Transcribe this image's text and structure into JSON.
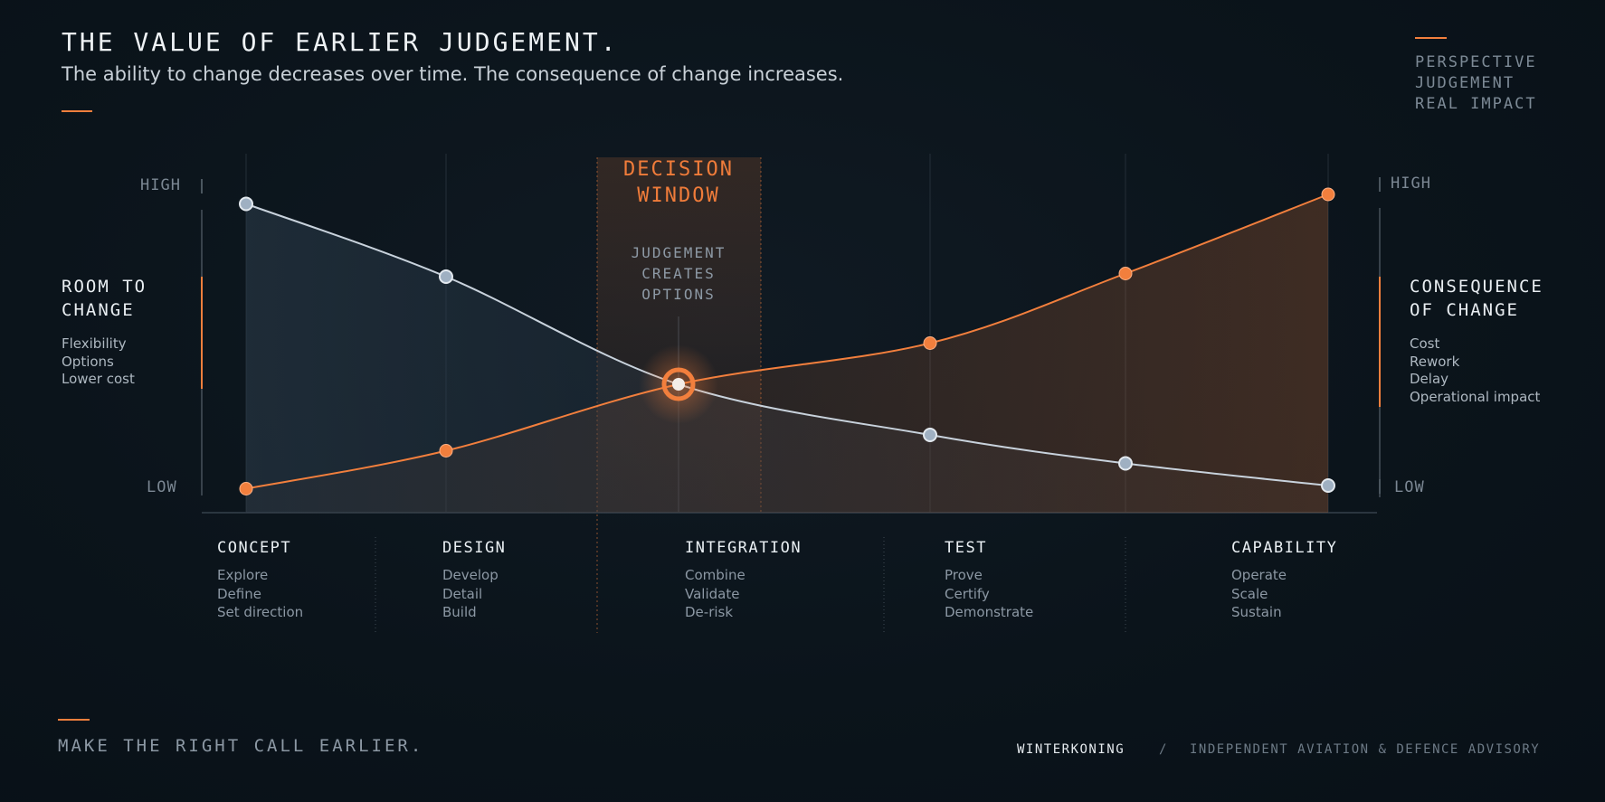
{
  "header": {
    "title": "THE VALUE OF EARLIER JUDGEMENT.",
    "subtitle": "The ability to change decreases over time. The consequence of change increases."
  },
  "top_right": {
    "items": [
      "PERSPECTIVE",
      "JUDGEMENT",
      "REAL IMPACT"
    ]
  },
  "left_panel": {
    "title_lines": [
      "ROOM TO",
      "CHANGE"
    ],
    "items": [
      "Flexibility",
      "Options",
      "Lower cost"
    ]
  },
  "right_panel": {
    "title_lines": [
      "CONSEQUENCE",
      "OF CHANGE"
    ],
    "items": [
      "Cost",
      "Rework",
      "Delay",
      "Operational impact"
    ]
  },
  "axes": {
    "left_high": "HIGH",
    "left_low": "LOW",
    "right_high": "HIGH",
    "right_low": "LOW"
  },
  "decision_window": {
    "title_lines": [
      "DECISION",
      "WINDOW"
    ],
    "sub_lines": [
      "JUDGEMENT",
      "CREATES",
      "OPTIONS"
    ]
  },
  "phases": [
    {
      "name": "CONCEPT",
      "items": [
        "Explore",
        "Define",
        "Set direction"
      ]
    },
    {
      "name": "DESIGN",
      "items": [
        "Develop",
        "Detail",
        "Build"
      ]
    },
    {
      "name": "INTEGRATION",
      "items": [
        "Combine",
        "Validate",
        "De-risk"
      ]
    },
    {
      "name": "TEST",
      "items": [
        "Prove",
        "Certify",
        "Demonstrate"
      ]
    },
    {
      "name": "CAPABILITY",
      "items": [
        "Operate",
        "Scale",
        "Sustain"
      ]
    }
  ],
  "footer": {
    "tagline": "MAKE THE RIGHT CALL EARLIER.",
    "brand": "WINTERKONING",
    "separator": "/",
    "advisory": "INDEPENDENT AVIATION & DEFENCE ADVISORY"
  },
  "colors": {
    "accent": "#f27f3d",
    "room_line": "#c8d2dc",
    "room_marker": "#9fb0c2",
    "background": "#0b141b"
  },
  "chart_data": {
    "type": "line",
    "x": [
      1,
      2,
      3,
      4,
      5,
      6
    ],
    "ylim": [
      0,
      1
    ],
    "grid": "vertical",
    "series": [
      {
        "name": "ROOM TO CHANGE",
        "values": [
          0.95,
          0.72,
          0.38,
          0.22,
          0.13,
          0.06
        ]
      },
      {
        "name": "CONSEQUENCE OF CHANGE",
        "values": [
          0.05,
          0.17,
          0.38,
          0.51,
          0.73,
          0.98
        ]
      }
    ],
    "highlight": {
      "x": 3,
      "y": 0.38
    }
  }
}
